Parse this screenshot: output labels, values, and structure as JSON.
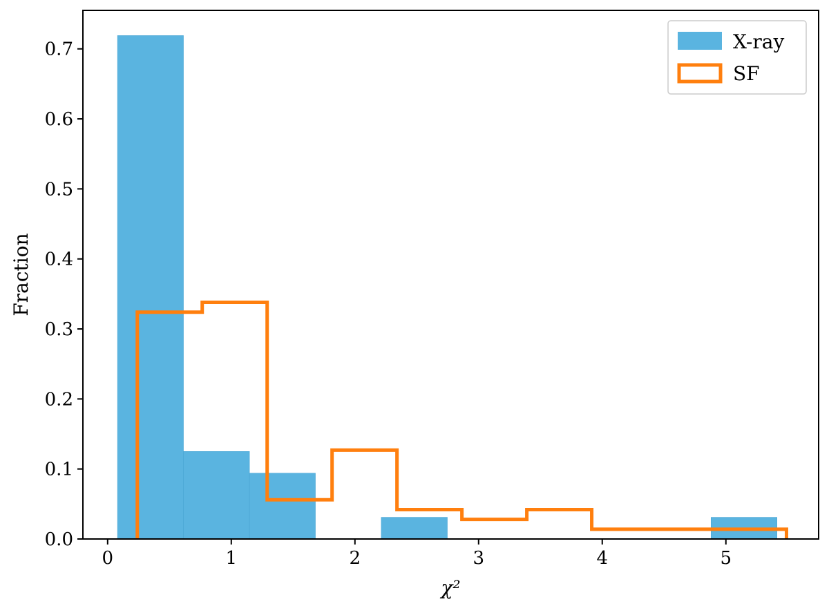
{
  "chart_data": {
    "type": "bar",
    "xlabel": "χ²",
    "ylabel": "Fraction",
    "xlim": [
      -0.2,
      5.75
    ],
    "ylim": [
      0,
      0.755
    ],
    "xticks": [
      "0",
      "1",
      "2",
      "3",
      "4",
      "5"
    ],
    "yticks": [
      "0.0",
      "0.1",
      "0.2",
      "0.3",
      "0.4",
      "0.5",
      "0.6",
      "0.7"
    ],
    "legend_position": "top-right",
    "series": [
      {
        "name": "X-ray",
        "style": "filled",
        "color": "#5ab4e0",
        "bin_edges": [
          0.08,
          0.613,
          1.147,
          1.68,
          2.213,
          2.747,
          3.28,
          3.813,
          4.347,
          4.88,
          5.413
        ],
        "values": [
          0.719,
          0.125,
          0.094,
          0.0,
          0.031,
          0.0,
          0.0,
          0.0,
          0.0,
          0.031
        ]
      },
      {
        "name": "SF",
        "style": "step",
        "color": "#ff7f0e",
        "bin_edges": [
          0.24,
          0.765,
          1.29,
          1.815,
          2.34,
          2.865,
          3.39,
          3.915,
          4.44,
          4.965,
          5.49
        ],
        "values": [
          0.324,
          0.338,
          0.056,
          0.127,
          0.042,
          0.028,
          0.042,
          0.014,
          0.014,
          0.014
        ]
      }
    ]
  }
}
